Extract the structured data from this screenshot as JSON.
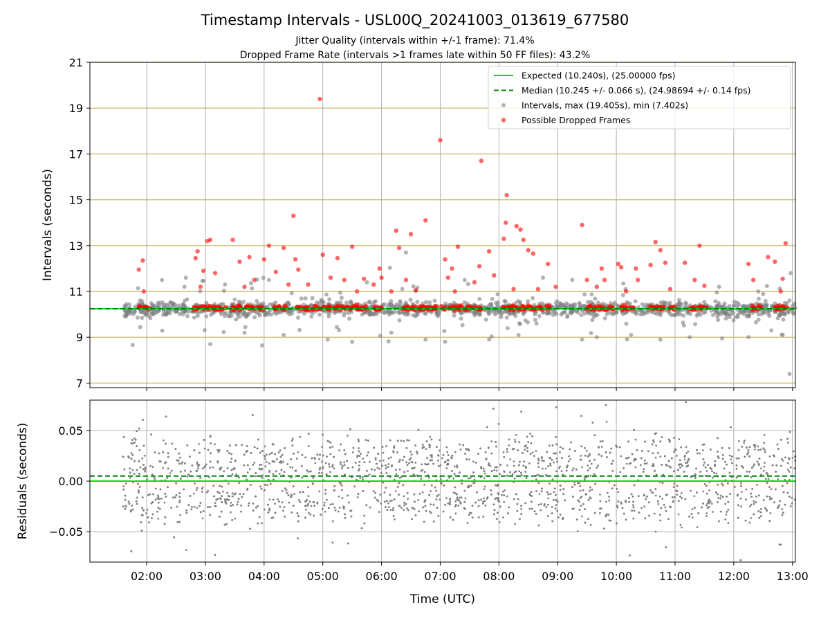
{
  "figure": {
    "title": "Timestamp Intervals - USL00Q_20241003_013619_677580",
    "subtitle_1": "Jitter Quality (intervals within +/-1 frame): 71.4%",
    "subtitle_2": "Dropped Frame Rate (intervals >1 frames late within 50 FF files): 43.2%",
    "colors": {
      "expected": "#00e000",
      "median": "#008000",
      "intervals": "#808080",
      "dropped": "#ff0000",
      "grid_y_top": "#c8b05a",
      "grid": "#b0b0b0"
    }
  },
  "chart_data": [
    {
      "type": "scatter",
      "panel": "intervals",
      "xlabel": "",
      "ylabel": "Intervals (seconds)",
      "xlim": [
        "01:02",
        "13:03"
      ],
      "ylim": [
        6.8,
        21
      ],
      "y_ticks": [
        7,
        9,
        11,
        13,
        15,
        17,
        19,
        21
      ],
      "x_ticks": [
        "02:00",
        "03:00",
        "04:00",
        "05:00",
        "06:00",
        "07:00",
        "08:00",
        "09:00",
        "10:00",
        "11:00",
        "12:00",
        "13:00"
      ],
      "grid": "on",
      "legend_position": "top-right",
      "legend": [
        "Expected (10.240s), (25.00000 fps)",
        "Median (10.245 +/- 0.066 s), (24.98694 +/- 0.14 fps)",
        "Intervals, max (19.405s), min (7.402s)",
        "Possible Dropped Frames"
      ],
      "expected_line": 10.24,
      "median_line": 10.245,
      "data_time_range": [
        "01:36",
        "13:03"
      ],
      "series": [
        {
          "name": "Intervals, max (19.405s), min (7.402s)",
          "baseline": 10.24,
          "spread": 0.45,
          "max": 19.405,
          "min": 7.402,
          "points": [
            [
              "02:40",
              11.6
            ],
            [
              "03:05",
              8.7
            ],
            [
              "03:20",
              11.3
            ],
            [
              "03:40",
              9.2
            ],
            [
              "04:05",
              11.5
            ],
            [
              "04:20",
              9.1
            ],
            [
              "05:05",
              8.9
            ],
            [
              "05:30",
              8.8
            ],
            [
              "05:45",
              11.4
            ],
            [
              "06:10",
              9.2
            ],
            [
              "06:25",
              12.7
            ],
            [
              "06:45",
              8.9
            ],
            [
              "07:05",
              8.8
            ],
            [
              "07:25",
              11.5
            ],
            [
              "07:50",
              8.9
            ],
            [
              "08:20",
              9.1
            ],
            [
              "08:45",
              11.6
            ],
            [
              "09:15",
              11.5
            ],
            [
              "09:25",
              8.9
            ],
            [
              "09:40",
              9.0
            ],
            [
              "10:15",
              9.1
            ],
            [
              "10:45",
              8.9
            ],
            [
              "11:15",
              9.0
            ],
            [
              "11:45",
              11.2
            ],
            [
              "12:15",
              9.0
            ],
            [
              "12:50",
              9.1
            ],
            [
              "12:57",
              7.402
            ],
            [
              "12:58",
              11.8
            ]
          ]
        },
        {
          "name": "Possible Dropped Frames",
          "baseline": 10.28,
          "points": [
            [
              "01:52",
              11.95
            ],
            [
              "01:56",
              12.35
            ],
            [
              "01:57",
              11.0
            ],
            [
              "02:50",
              12.45
            ],
            [
              "02:52",
              12.75
            ],
            [
              "02:55",
              11.2
            ],
            [
              "02:58",
              11.9
            ],
            [
              "03:02",
              13.2
            ],
            [
              "03:05",
              13.25
            ],
            [
              "03:10",
              11.8
            ],
            [
              "03:28",
              13.25
            ],
            [
              "03:35",
              12.3
            ],
            [
              "03:40",
              11.2
            ],
            [
              "03:45",
              12.5
            ],
            [
              "03:50",
              11.5
            ],
            [
              "04:00",
              12.4
            ],
            [
              "04:05",
              13.0
            ],
            [
              "04:12",
              11.85
            ],
            [
              "04:20",
              12.9
            ],
            [
              "04:25",
              11.3
            ],
            [
              "04:30",
              14.3
            ],
            [
              "04:32",
              12.4
            ],
            [
              "04:35",
              11.95
            ],
            [
              "04:45",
              11.3
            ],
            [
              "04:57",
              19.4
            ],
            [
              "05:00",
              12.6
            ],
            [
              "05:08",
              11.6
            ],
            [
              "05:15",
              12.45
            ],
            [
              "05:22",
              11.5
            ],
            [
              "05:30",
              12.95
            ],
            [
              "05:35",
              11.0
            ],
            [
              "05:42",
              11.55
            ],
            [
              "05:52",
              11.3
            ],
            [
              "05:58",
              12.0
            ],
            [
              "06:00",
              11.6
            ],
            [
              "06:10",
              11.0
            ],
            [
              "06:15",
              13.65
            ],
            [
              "06:18",
              12.9
            ],
            [
              "06:25",
              11.5
            ],
            [
              "06:30",
              13.5
            ],
            [
              "06:35",
              11.05
            ],
            [
              "06:45",
              14.1
            ],
            [
              "07:00",
              17.6
            ],
            [
              "07:05",
              12.4
            ],
            [
              "07:08",
              11.6
            ],
            [
              "07:12",
              12.0
            ],
            [
              "07:15",
              11.0
            ],
            [
              "07:18",
              12.95
            ],
            [
              "07:35",
              11.4
            ],
            [
              "07:40",
              12.1
            ],
            [
              "07:42",
              16.7
            ],
            [
              "07:50",
              12.75
            ],
            [
              "07:55",
              11.7
            ],
            [
              "08:05",
              13.3
            ],
            [
              "08:07",
              14.0
            ],
            [
              "08:08",
              15.2
            ],
            [
              "08:15",
              11.1
            ],
            [
              "08:18",
              13.85
            ],
            [
              "08:22",
              13.7
            ],
            [
              "08:25",
              13.25
            ],
            [
              "08:30",
              12.8
            ],
            [
              "08:35",
              12.65
            ],
            [
              "08:40",
              11.1
            ],
            [
              "08:50",
              12.2
            ],
            [
              "08:58",
              11.2
            ],
            [
              "09:25",
              13.9
            ],
            [
              "09:30",
              11.5
            ],
            [
              "09:40",
              11.2
            ],
            [
              "09:45",
              12.0
            ],
            [
              "09:48",
              11.5
            ],
            [
              "10:02",
              12.2
            ],
            [
              "10:05",
              12.05
            ],
            [
              "10:10",
              11.0
            ],
            [
              "10:20",
              12.0
            ],
            [
              "10:22",
              11.5
            ],
            [
              "10:35",
              12.15
            ],
            [
              "10:40",
              13.15
            ],
            [
              "10:45",
              12.8
            ],
            [
              "10:50",
              12.25
            ],
            [
              "10:55",
              11.1
            ],
            [
              "11:10",
              12.25
            ],
            [
              "11:20",
              11.5
            ],
            [
              "11:25",
              13.0
            ],
            [
              "11:30",
              11.25
            ],
            [
              "12:15",
              12.2
            ],
            [
              "12:20",
              11.5
            ],
            [
              "12:35",
              12.5
            ],
            [
              "12:42",
              12.3
            ],
            [
              "12:48",
              11.0
            ],
            [
              "12:50",
              11.55
            ],
            [
              "12:53",
              13.1
            ]
          ]
        }
      ]
    },
    {
      "type": "scatter",
      "panel": "residuals",
      "xlabel": "Time (UTC)",
      "ylabel": "Residuals (seconds)",
      "xlim": [
        "01:02",
        "13:03"
      ],
      "ylim": [
        -0.08,
        0.08
      ],
      "y_ticks": [
        -0.05,
        0.0,
        0.05
      ],
      "y_tick_labels": [
        "−0.05",
        "0.00",
        "0.05"
      ],
      "x_ticks": [
        "02:00",
        "03:00",
        "04:00",
        "05:00",
        "06:00",
        "07:00",
        "08:00",
        "09:00",
        "10:00",
        "11:00",
        "12:00",
        "13:00"
      ],
      "grid": "on",
      "expected_line": 0.0,
      "median_line": 0.005,
      "series": [
        {
          "name": "",
          "distribution": "bimodal around +0.02 and -0.02, range -0.08 to 0.08",
          "modes": [
            0.02,
            -0.02
          ],
          "spread": 0.012
        }
      ]
    }
  ]
}
